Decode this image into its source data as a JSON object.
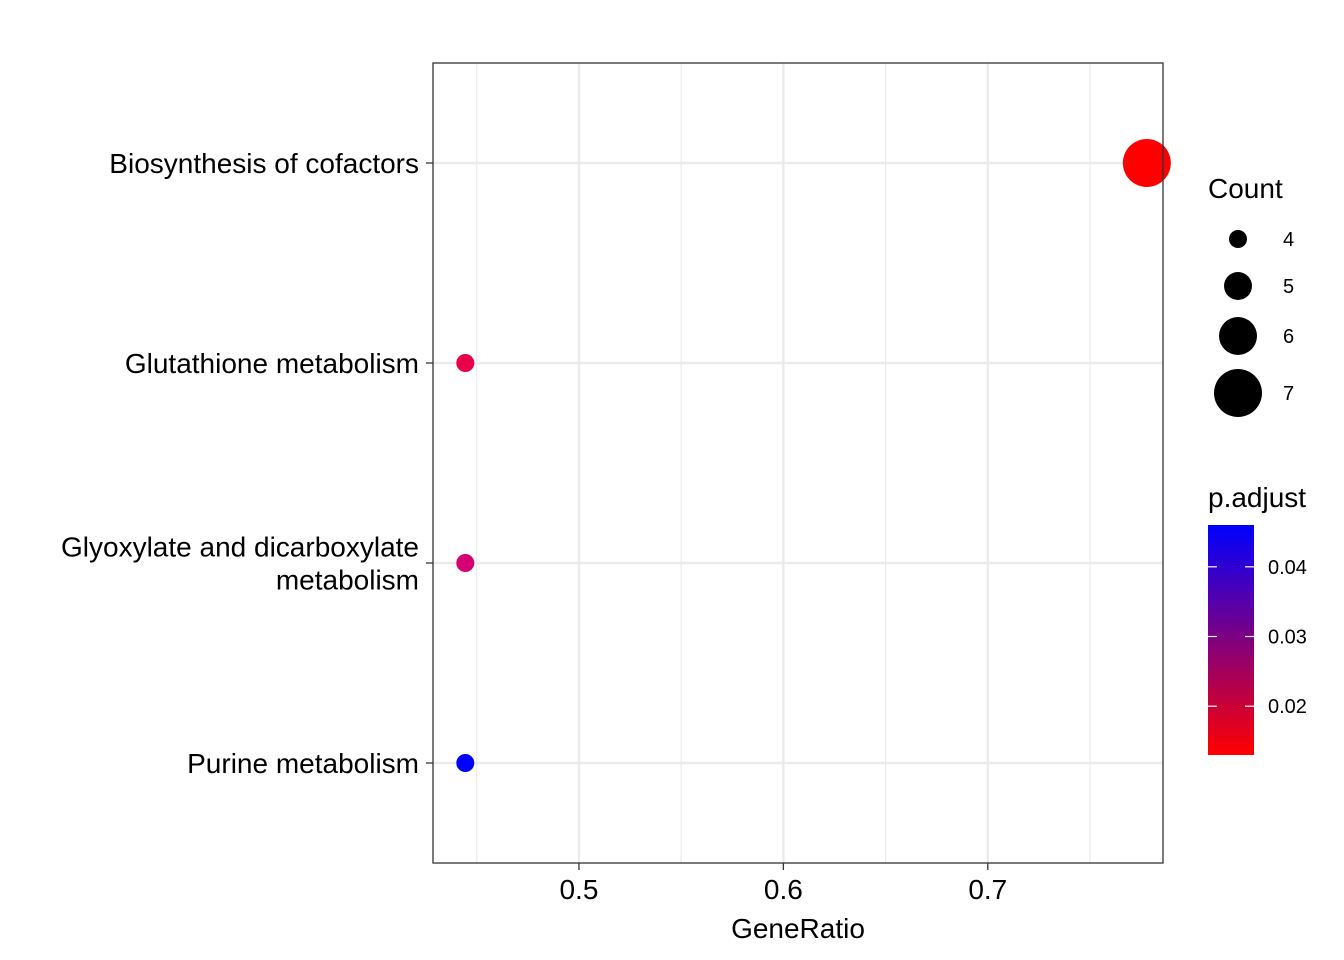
{
  "chart_data": {
    "type": "scatter",
    "xlabel": "GeneRatio",
    "ylabel": "",
    "xlim": [
      0.4286,
      0.7857
    ],
    "xticks": [
      0.5,
      0.6,
      0.7
    ],
    "xtick_labels": [
      "0.5",
      "0.6",
      "0.7"
    ],
    "xgrid_minor": [
      0.45,
      0.55,
      0.65,
      0.75
    ],
    "categories": [
      [
        "Biosynthesis of cofactors"
      ],
      [
        "Glutathione metabolism"
      ],
      [
        "Glyoxylate and dicarboxylate",
        "metabolism"
      ],
      [
        "Purine metabolism"
      ]
    ],
    "points": [
      {
        "x": 0.7778,
        "count": 7,
        "p_adjust": 0.013,
        "color": "#FF0000"
      },
      {
        "x": 0.4444,
        "count": 4,
        "p_adjust": 0.022,
        "color": "#E8004B"
      },
      {
        "x": 0.4444,
        "count": 4,
        "p_adjust": 0.028,
        "color": "#D60075"
      },
      {
        "x": 0.4444,
        "count": 4,
        "p_adjust": 0.046,
        "color": "#0000FF"
      }
    ],
    "grid": true,
    "legend_position": "right",
    "size_legend": {
      "title": "Count",
      "values": [
        4,
        5,
        6,
        7
      ],
      "labels": [
        "4",
        "5",
        "6",
        "7"
      ]
    },
    "color_legend": {
      "title": "p.adjust",
      "low_color": "#FF0000",
      "high_color": "#0000FF",
      "range": [
        0.013,
        0.046
      ],
      "ticks": [
        0.02,
        0.03,
        0.04
      ],
      "tick_labels": [
        "0.02",
        "0.03",
        "0.04"
      ]
    }
  }
}
